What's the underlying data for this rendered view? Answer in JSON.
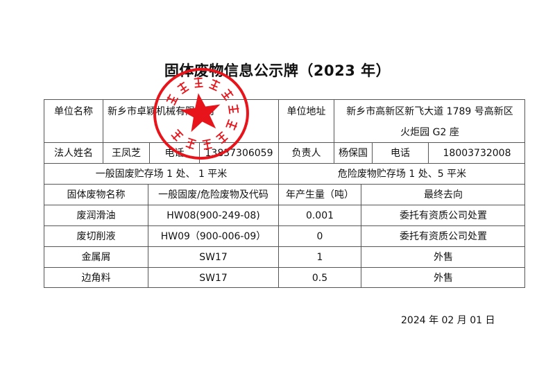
{
  "title": "固体废物信息公示牌（2023 年）",
  "info": {
    "unit_name_label": "单位名称",
    "unit_name": "新乡市卓颖机械有限公司",
    "unit_address_label": "单位地址",
    "unit_address_line1": "新乡市高新区新飞大道 1789 号高新区",
    "unit_address_line2": "火炬园 G2 座",
    "legal_person_label": "法人姓名",
    "legal_person": "王凤芝",
    "phone_label_1": "电话",
    "phone_1": "13837306059",
    "responsible_label": "负责人",
    "responsible": "杨保国",
    "phone_label_2": "电话",
    "phone_2": "18003732008",
    "general_storage": "一般固废贮存场 1 处、 1 平米",
    "hazardous_storage": "危险废物贮存场 1 处、5 平米"
  },
  "table": {
    "headers": [
      "固体废物名称",
      "一般固废/危险废物及代码",
      "年产生量（吨）",
      "最终去向"
    ],
    "rows": [
      [
        "废润滑油",
        "HW08(900-249-08)",
        "0.001",
        "委托有资质公司处置"
      ],
      [
        "废切削液",
        "HW09（900-006-09）",
        "0",
        "委托有资质公司处置"
      ],
      [
        "金属屑",
        "SW17",
        "1",
        "外售"
      ],
      [
        "边角料",
        "SW17",
        "0.5",
        "外售"
      ]
    ]
  },
  "date": "2024 年  02  月  01  日",
  "stamp": {
    "text": "新乡市卓颖机械有限公司",
    "color": "#e8141b"
  }
}
